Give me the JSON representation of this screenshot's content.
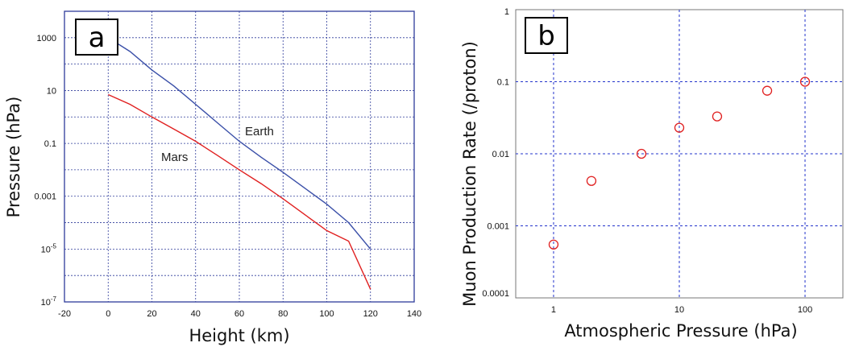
{
  "chart_data": [
    {
      "panel": "a",
      "type": "line",
      "xlabel": "Height (km)",
      "ylabel": "Pressure (hPa)",
      "xlim": [
        -20,
        140
      ],
      "xticks": [
        -20,
        0,
        20,
        40,
        60,
        80,
        100,
        120,
        140
      ],
      "ylim": [
        1e-07,
        10000
      ],
      "yscale": "log",
      "yticks": [
        {
          "value": 1000,
          "label": "1000"
        },
        {
          "value": 10,
          "label": "10"
        },
        {
          "value": 0.1,
          "label": "0.1"
        },
        {
          "value": 0.001,
          "label": "0.001"
        },
        {
          "value": 1e-05,
          "label": "10",
          "exponent": "-5"
        },
        {
          "value": 1e-07,
          "label": "10",
          "exponent": "-7"
        }
      ],
      "grid": true,
      "series": [
        {
          "name": "Earth",
          "color": "#3a4fa8",
          "x": [
            0,
            10,
            20,
            30,
            40,
            50,
            60,
            70,
            80,
            90,
            100,
            110,
            120
          ],
          "y": [
            1000,
            300,
            60,
            15,
            3,
            0.6,
            0.12,
            0.03,
            0.008,
            0.002,
            0.0005,
            0.0001,
            1e-05
          ]
        },
        {
          "name": "Mars",
          "color": "#e02020",
          "x": [
            0,
            10,
            20,
            30,
            40,
            50,
            60,
            70,
            80,
            90,
            100,
            110,
            120
          ],
          "y": [
            7,
            3,
            1,
            0.35,
            0.12,
            0.035,
            0.01,
            0.003,
            0.0008,
            0.0002,
            5e-05,
            2e-05,
            3e-07
          ]
        }
      ]
    },
    {
      "panel": "b",
      "type": "scatter",
      "xlabel": "Atmospheric Pressure (hPa)",
      "ylabel": "Muon Production Rate (/proton)",
      "xscale": "log",
      "yscale": "log",
      "xlim": [
        0.5,
        200
      ],
      "xticks": [
        {
          "value": 1,
          "label": "1"
        },
        {
          "value": 10,
          "label": "10"
        },
        {
          "value": 100,
          "label": "100"
        }
      ],
      "ylim": [
        0.0001,
        1
      ],
      "yticks": [
        {
          "value": 1,
          "label": "1"
        },
        {
          "value": 0.1,
          "label": "0.1"
        },
        {
          "value": 0.01,
          "label": "0.01"
        },
        {
          "value": 0.001,
          "label": "0.001"
        },
        {
          "value": 0.0001,
          "label": "0.0001"
        }
      ],
      "grid": true,
      "marker_color": "#e02020",
      "x": [
        1,
        2,
        5,
        10,
        20,
        50,
        100
      ],
      "y": [
        0.00055,
        0.0042,
        0.01,
        0.023,
        0.033,
        0.075,
        0.1
      ]
    }
  ]
}
